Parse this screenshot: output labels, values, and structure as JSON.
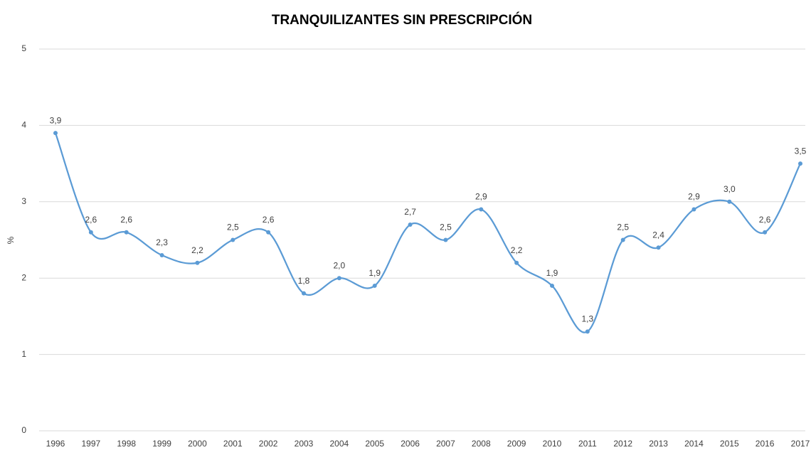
{
  "chart_data": {
    "type": "line",
    "title": "TRANQUILIZANTES SIN PRESCRIPCIÓN",
    "y_label": "%",
    "categories": [
      "1996",
      "1997",
      "1998",
      "1999",
      "2000",
      "2001",
      "2002",
      "2003",
      "2004",
      "2005",
      "2006",
      "2007",
      "2008",
      "2009",
      "2010",
      "2011",
      "2012",
      "2013",
      "2014",
      "2015",
      "2016",
      "2017"
    ],
    "series": [
      {
        "name": "Tranquilizantes sin prescripción",
        "color": "#5b9bd5",
        "values": [
          3.9,
          2.6,
          2.6,
          2.3,
          2.2,
          2.5,
          2.6,
          1.8,
          2.0,
          1.9,
          2.7,
          2.5,
          2.9,
          2.2,
          1.9,
          1.3,
          2.5,
          2.4,
          2.9,
          3.0,
          2.6,
          3.5
        ],
        "value_labels": [
          "3,9",
          "2,6",
          "2,6",
          "2,3",
          "2,2",
          "2,5",
          "2,6",
          "1,8",
          "2,0",
          "1,9",
          "2,7",
          "2,5",
          "2,9",
          "2,2",
          "1,9",
          "1,3",
          "2,5",
          "2,4",
          "2,9",
          "3,0",
          "2,6",
          "3,5"
        ]
      }
    ],
    "ylim": [
      0,
      5
    ],
    "yticks": [
      0,
      1,
      2,
      3,
      4,
      5
    ],
    "grid": true,
    "smooth": true
  }
}
